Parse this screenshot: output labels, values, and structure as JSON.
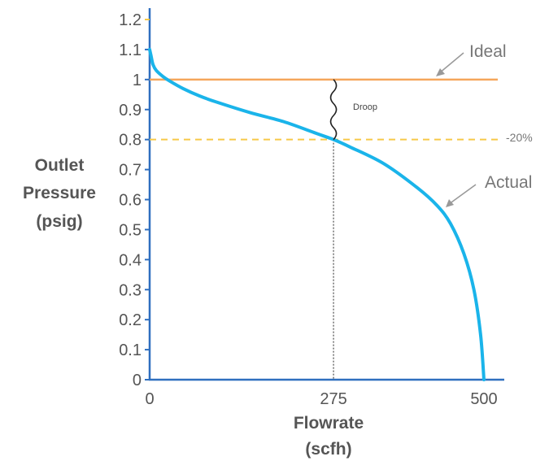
{
  "chart_data": {
    "type": "line",
    "xlabel": [
      "Flowrate",
      "(scfh)"
    ],
    "ylabel": [
      "Outlet",
      "Pressure",
      "(psig)"
    ],
    "xlim": [
      0,
      500
    ],
    "ylim": [
      0,
      1.2
    ],
    "x_ticks": [
      "0",
      "275",
      "500"
    ],
    "x_tick_values": [
      0,
      275,
      500
    ],
    "y_ticks": [
      "0",
      "0.1",
      "0.2",
      "0.3",
      "0.4",
      "0.5",
      "0.6",
      "0.7",
      "0.8",
      "0.9",
      "1",
      "1.1",
      "1.2"
    ],
    "y_tick_values": [
      0,
      0.1,
      0.2,
      0.3,
      0.4,
      0.5,
      0.6,
      0.7,
      0.8,
      0.9,
      1.0,
      1.1,
      1.2
    ],
    "grid": false,
    "colors": {
      "axis": "#2f6fbf",
      "ideal": "#f5a65b",
      "actual": "#1ab4ea",
      "reference": "#f7c948",
      "guide": "#555555"
    },
    "series": [
      {
        "name": "Ideal",
        "x": [
          0,
          500
        ],
        "y": [
          1.0,
          1.0
        ]
      },
      {
        "name": "Actual",
        "x": [
          0,
          2,
          5,
          10,
          20,
          30,
          50,
          75,
          100,
          150,
          200,
          250,
          275,
          300,
          350,
          400,
          430,
          450,
          470,
          485,
          495,
          500
        ],
        "y": [
          1.1,
          1.08,
          1.05,
          1.03,
          1.01,
          0.995,
          0.97,
          0.945,
          0.925,
          0.89,
          0.86,
          0.82,
          0.8,
          0.775,
          0.72,
          0.64,
          0.58,
          0.52,
          0.42,
          0.3,
          0.15,
          0.0
        ]
      }
    ],
    "reference_line": {
      "label": "-20%",
      "y": 0.8
    },
    "guide_x": 275,
    "annotations": {
      "ideal": "Ideal",
      "actual": "Actual",
      "droop": "Droop",
      "minus20": "-20%"
    }
  }
}
